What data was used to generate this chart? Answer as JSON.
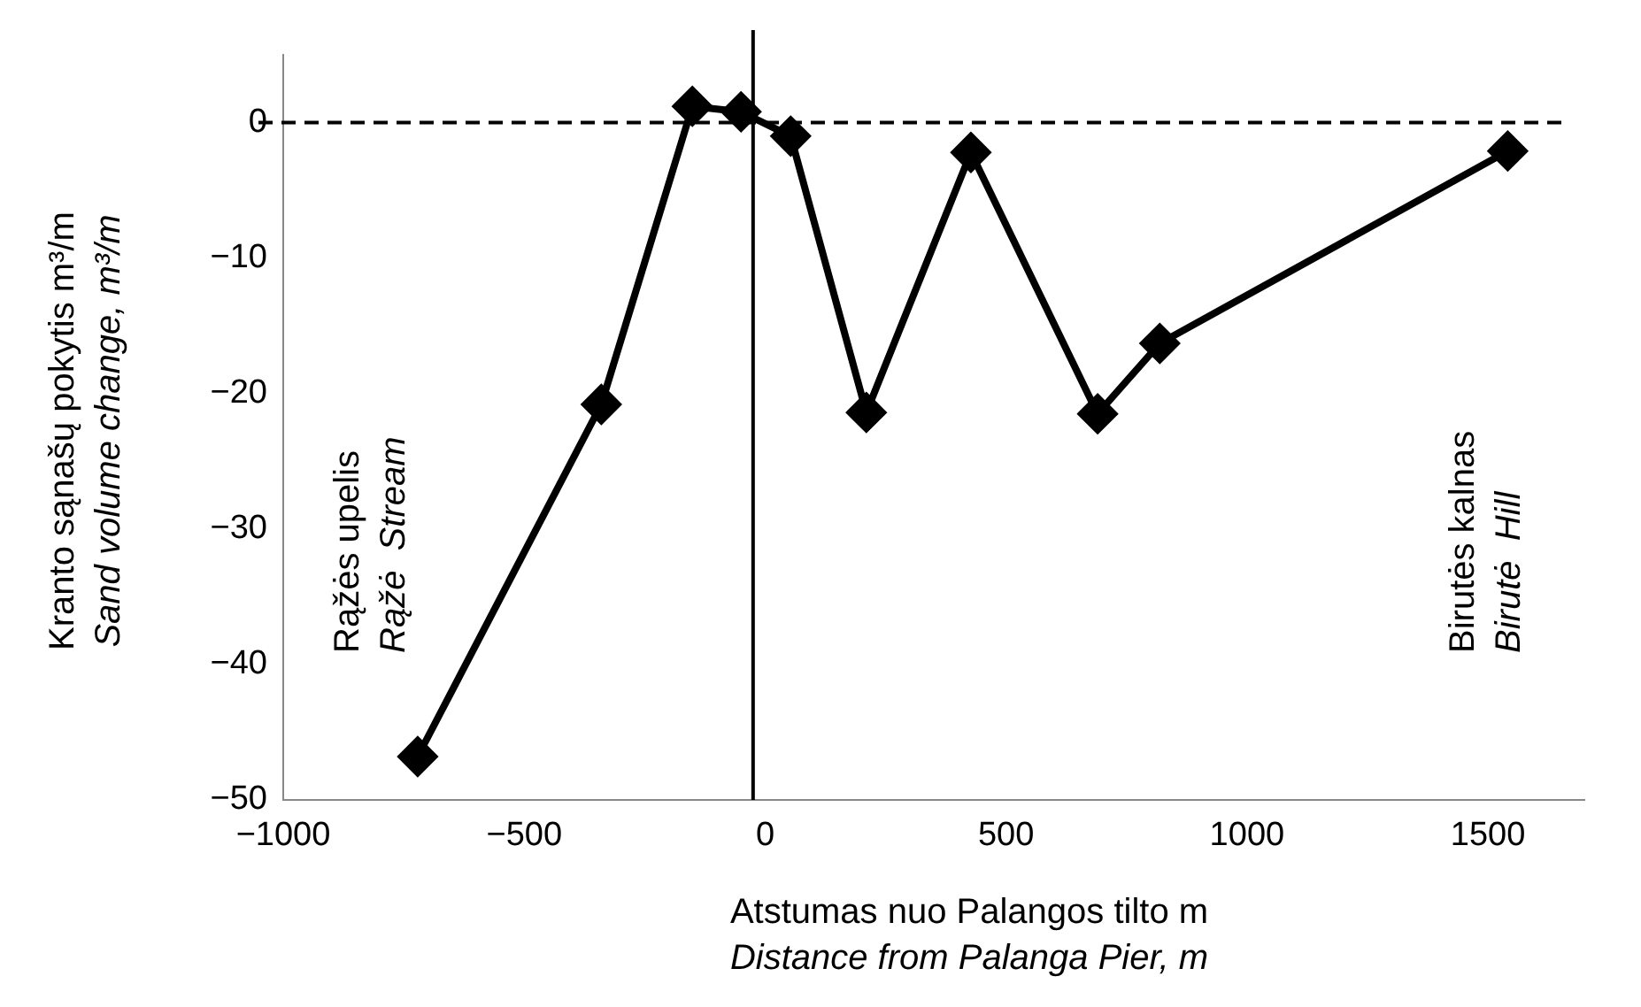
{
  "chart_data": {
    "type": "line",
    "xlabel": "Atstumas nuo Palangos tilto m\nDistance from Palanga Pier, m",
    "ylabel": "Kranto sąnašų pokytis m³/m\nSand volume change, m³/m",
    "x": [
      -721,
      -340,
      -151,
      -50,
      53,
      210,
      427,
      690,
      819,
      1541
    ],
    "series": [
      {
        "color": "#000000",
        "values": [
          -46.8,
          -20.8,
          1.2,
          0.8,
          -1.0,
          -21.4,
          -2.2,
          -21.5,
          -16.3,
          -2.1
        ]
      }
    ],
    "xlim": [
      -1000,
      1700
    ],
    "xticks": [
      {
        "value": -1000,
        "label": "−1000"
      },
      {
        "value": -500,
        "label": "−500"
      },
      0,
      500,
      1000,
      1500
    ],
    "ylim": [
      -50,
      5
    ],
    "yticks": [
      {
        "value": -50,
        "label": "−50"
      },
      {
        "value": -40,
        "label": "−40"
      },
      {
        "value": -30,
        "label": "−30"
      },
      {
        "value": -20,
        "label": "−20"
      },
      {
        "value": -10,
        "label": "−10"
      },
      0
    ],
    "ref_lines": [
      {
        "axis": "y",
        "value": 0,
        "line_style": "dashed",
        "color": "#000000"
      },
      {
        "axis": "x",
        "value": -25,
        "line_style": "solid",
        "color": "#000000"
      }
    ],
    "annotations": [
      "Rąžės upelis\nRąžė  Stream",
      "Birutės kalnas\nBirutė  Hill"
    ],
    "marker": "diamond",
    "line_style": "solid",
    "grid": false,
    "legend": false
  }
}
